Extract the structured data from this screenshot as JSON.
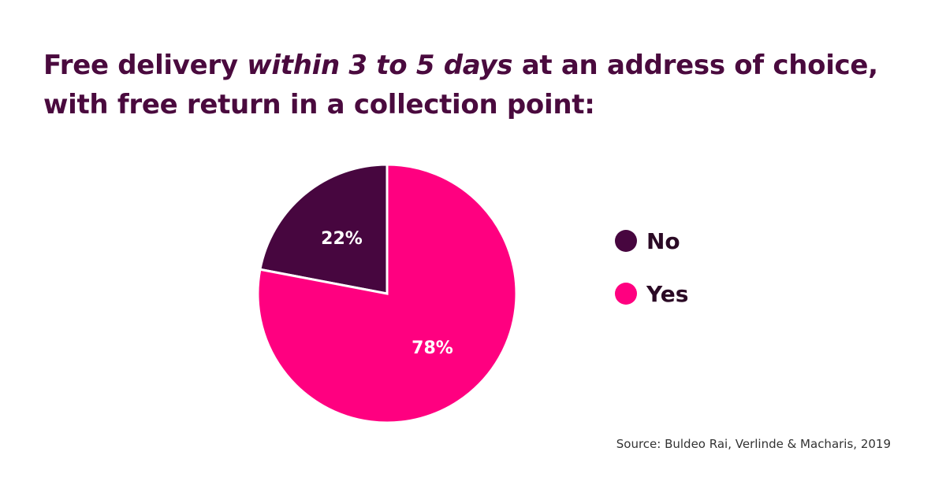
{
  "title": {
    "line1_pre": "Free delivery ",
    "line1_em": "within 3 to 5 days",
    "line1_post": " at an address of choice,",
    "line2": "with free return in a collection point:"
  },
  "source": "Source: Buldeo Rai, Verlinde & Macharis, 2019",
  "chart_data": {
    "type": "pie",
    "title": "Free delivery within 3 to 5 days at an address of choice, with free return in a collection point:",
    "start_angle_deg": 0,
    "direction": "counterclockwise",
    "slices": [
      {
        "label": "No",
        "value": 22,
        "display": "22%",
        "color": "#47063f"
      },
      {
        "label": "Yes",
        "value": 78,
        "display": "78%",
        "color": "#ff0080"
      }
    ],
    "legend": {
      "placement": "right",
      "entries": [
        "No",
        "Yes"
      ]
    }
  }
}
